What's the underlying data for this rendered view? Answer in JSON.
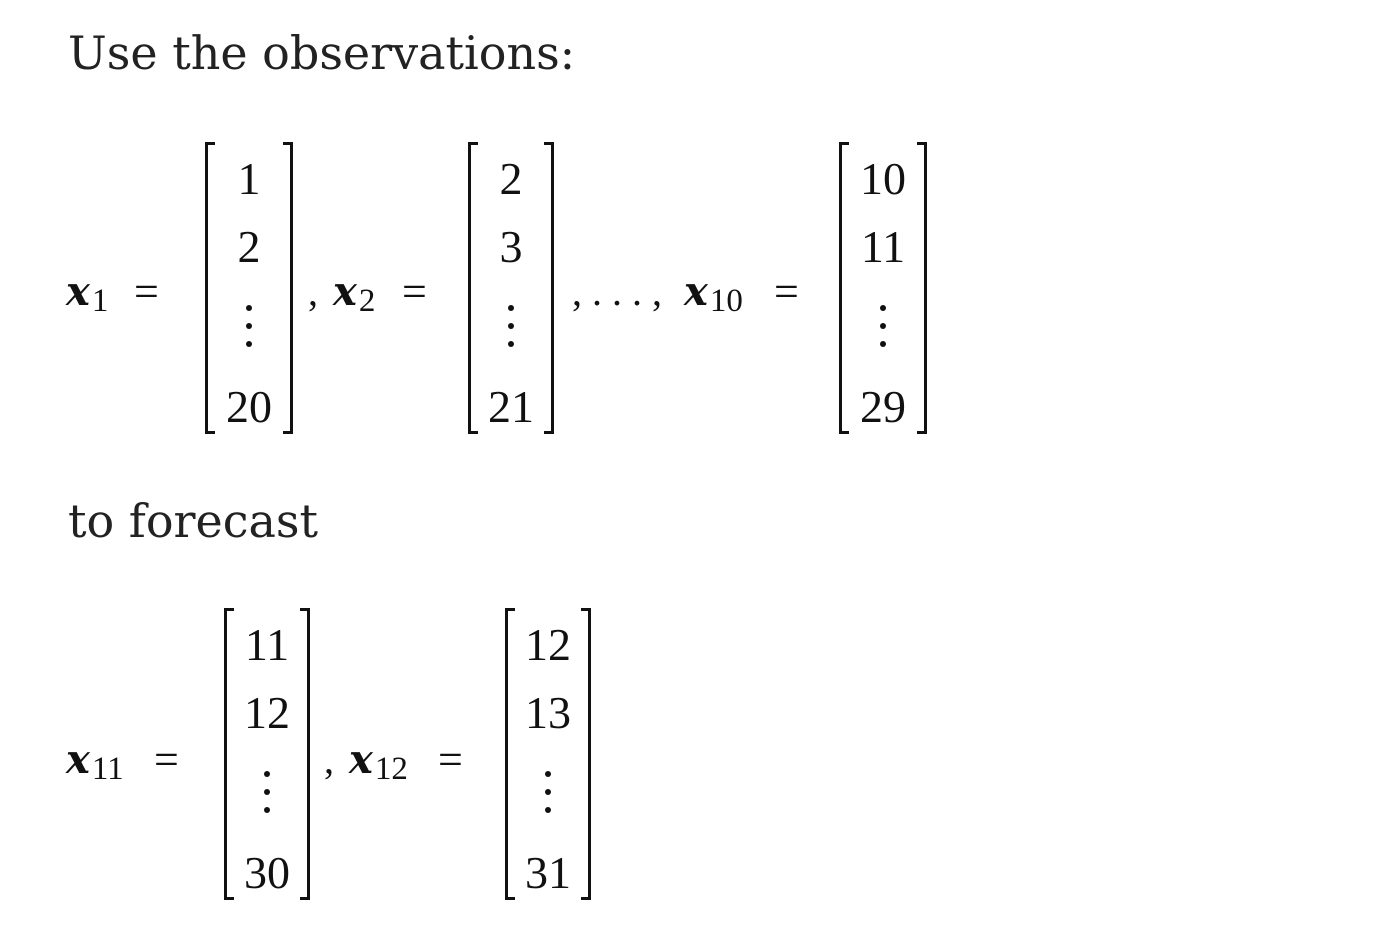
{
  "intro_text": "Use the observations:",
  "middle_text": "to forecast",
  "observations": {
    "x1": {
      "symbol": "x",
      "subscript": "1",
      "values": [
        "1",
        "2",
        "20"
      ]
    },
    "x2": {
      "symbol": "x",
      "subscript": "2",
      "values": [
        "2",
        "3",
        "21"
      ]
    },
    "x10": {
      "symbol": "x",
      "subscript": "10",
      "values": [
        "10",
        "11",
        "29"
      ]
    },
    "equals": "=",
    "comma": ",",
    "ellipsis": ", . . . ,"
  },
  "forecast": {
    "x11": {
      "symbol": "x",
      "subscript": "11",
      "values": [
        "11",
        "12",
        "30"
      ]
    },
    "x12": {
      "symbol": "x",
      "subscript": "12",
      "values": [
        "12",
        "13",
        "31"
      ]
    },
    "equals": "=",
    "comma": ","
  }
}
